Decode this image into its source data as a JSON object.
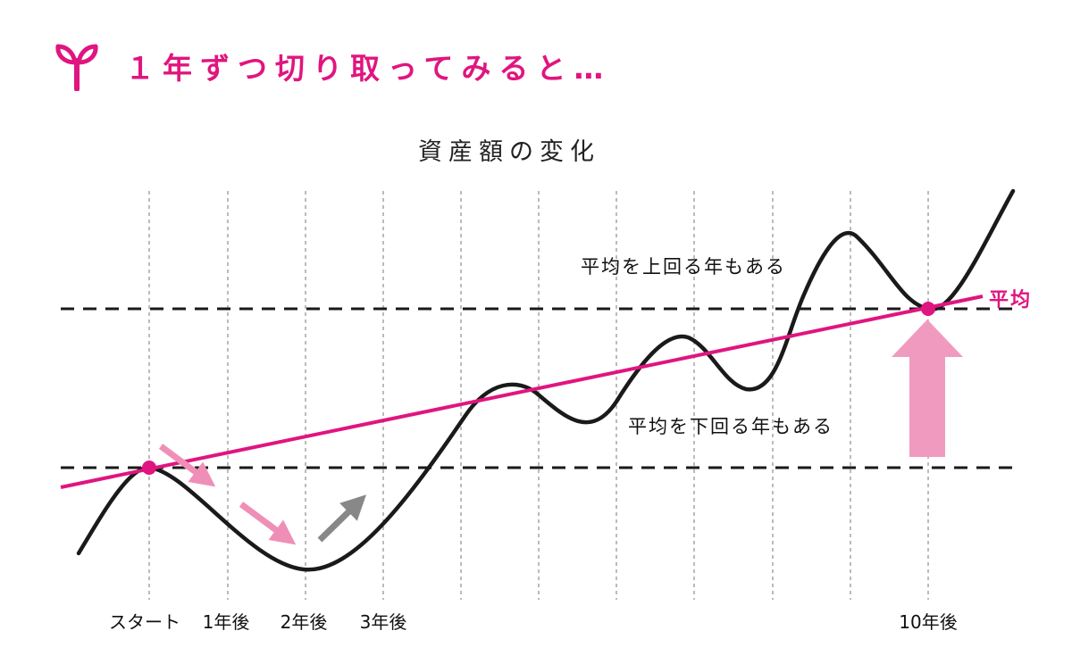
{
  "header": {
    "title": "１年ずつ切り取ってみると…",
    "icon": "sprout-icon",
    "accent_color": "#e0157f"
  },
  "diagram": {
    "title": "資産額の変化",
    "average_label": "平均",
    "above_average_note": "平均を上回る年もある",
    "below_average_note": "平均を下回る年もある",
    "x_labels": [
      "スタート",
      "1年後",
      "2年後",
      "3年後",
      "10年後"
    ],
    "colors": {
      "average_line": "#e0157f",
      "asset_curve": "#1a1a1a",
      "decline_arrow": "#ef8fb7",
      "rise_arrow": "#888888",
      "up_arrow": "#f19ac0",
      "marker": "#e0157f"
    }
  }
}
